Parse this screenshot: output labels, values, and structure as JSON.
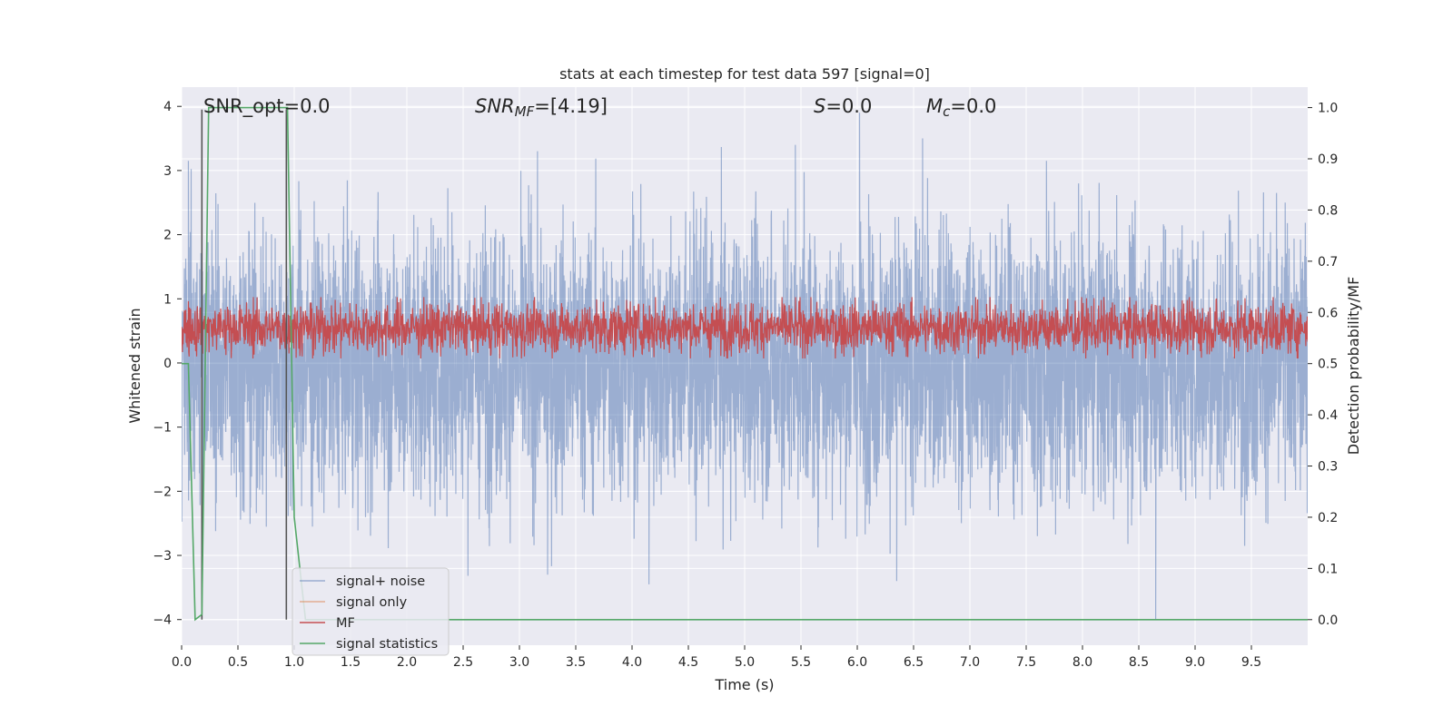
{
  "chart_data": {
    "type": "line",
    "title": "stats at each timestep for test data 597 [signal=0]",
    "xlabel": "Time (s)",
    "ylabel": "Whitened strain",
    "y2label": "Detection probability/MF",
    "xlim": [
      0.0,
      10.0
    ],
    "ylim": [
      -4.4,
      4.3
    ],
    "y2lim": [
      -0.05,
      1.04
    ],
    "xticks": [
      "0.0",
      "0.5",
      "1.0",
      "1.5",
      "2.0",
      "2.5",
      "3.0",
      "3.5",
      "4.0",
      "4.5",
      "5.0",
      "5.5",
      "6.0",
      "6.5",
      "7.0",
      "7.5",
      "8.0",
      "8.5",
      "9.0",
      "9.5"
    ],
    "yticks": [
      "4",
      "3",
      "2",
      "1",
      "0",
      "−1",
      "−2",
      "−3",
      "−4"
    ],
    "y2ticks": [
      "1.0",
      "0.9",
      "0.8",
      "0.7",
      "0.6",
      "0.5",
      "0.4",
      "0.3",
      "0.2",
      "0.1",
      "0.0"
    ],
    "grid": true,
    "background": "#eaeaf2",
    "legend": {
      "position": "lower-left",
      "entries": [
        {
          "label": "signal+ noise",
          "color": "#4c72b0"
        },
        {
          "label": "signal only",
          "color": "#dd8452"
        },
        {
          "label": "MF",
          "color": "#c44e52"
        },
        {
          "label": "signal statistics",
          "color": "#55a868"
        }
      ]
    },
    "annotations": {
      "snr_opt": "SNR_opt=0.0",
      "snr_mf_sym": "SNR",
      "snr_mf_sub": "MF",
      "snr_mf_val": "=[4.19]",
      "s_sym": "S",
      "s_val": "=0.0",
      "mc_sym": "M",
      "mc_sub": "c",
      "mc_val": "=0.0"
    },
    "noise": {
      "name": "signal+ noise",
      "color": "#4c72b0",
      "t_range": [
        0.0,
        10.0
      ],
      "y_range": [
        -4.0,
        3.9
      ],
      "peaks": [
        [
          0.06,
          3.15
        ],
        [
          2.4,
          2.35
        ],
        [
          3.25,
          -3.3
        ],
        [
          4.15,
          -3.45
        ],
        [
          5.45,
          3.4
        ],
        [
          6.02,
          3.9
        ],
        [
          6.35,
          -3.4
        ],
        [
          6.58,
          3.5
        ],
        [
          7.68,
          3.15
        ],
        [
          8.65,
          -4.0
        ],
        [
          9.8,
          2.5
        ]
      ]
    },
    "mf": {
      "name": "MF",
      "color": "#c44e52",
      "t_range": [
        0.0,
        10.0
      ],
      "y_range": [
        0.51,
        0.63
      ]
    },
    "signal_statistics": {
      "name": "signal statistics",
      "color": "#55a868",
      "x": [
        0.0,
        0.06,
        0.12,
        0.18,
        0.24,
        0.3,
        0.5,
        0.7,
        0.9,
        0.94,
        1.0,
        1.1,
        1.2,
        1.5,
        2.0,
        3.0,
        4.0,
        5.0,
        6.0,
        7.0,
        8.0,
        9.0,
        10.0
      ],
      "y": [
        0.5,
        0.5,
        0.0,
        0.01,
        1.0,
        1.0,
        1.0,
        1.0,
        1.0,
        1.0,
        0.2,
        0.0,
        0.0,
        0.0,
        0.0,
        0.0,
        0.0,
        0.0,
        0.0,
        0.0,
        0.0,
        0.0,
        0.0
      ]
    },
    "markers": {
      "color": "#555555",
      "x": [
        0.18,
        0.93
      ],
      "y_range": [
        -4.0,
        3.95
      ]
    }
  }
}
